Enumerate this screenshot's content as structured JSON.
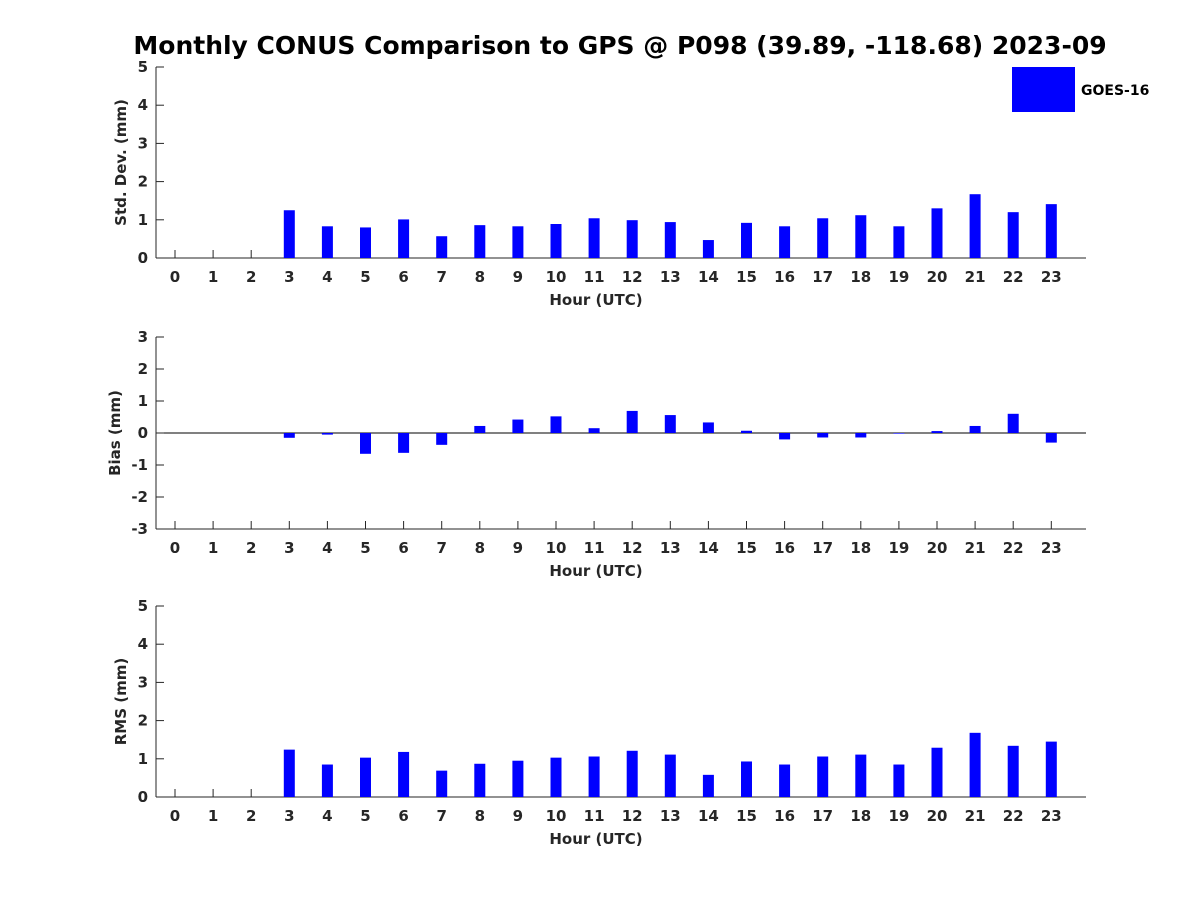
{
  "chart_data": {
    "title": "Monthly CONUS Comparison to GPS @ P098 (39.89, -118.68) 2023-09",
    "legend": {
      "label": "GOES-16",
      "color": "#0000ff",
      "placement": "top-right"
    },
    "type": "bar",
    "panels": [
      {
        "name": "std-dev",
        "xlabel": "Hour (UTC)",
        "ylabel": "Std. Dev. (mm)",
        "ylim": [
          0,
          5
        ],
        "yticks": [
          0,
          1,
          2,
          3,
          4,
          5
        ],
        "x": [
          0,
          1,
          2,
          3,
          4,
          5,
          6,
          7,
          8,
          9,
          10,
          11,
          12,
          13,
          14,
          15,
          16,
          17,
          18,
          19,
          20,
          21,
          22,
          23
        ],
        "values": [
          0,
          0,
          0,
          1.25,
          0.83,
          0.8,
          1.01,
          0.57,
          0.86,
          0.83,
          0.89,
          1.04,
          0.99,
          0.94,
          0.47,
          0.92,
          0.83,
          1.04,
          1.12,
          0.83,
          1.3,
          1.67,
          1.2,
          1.41
        ]
      },
      {
        "name": "bias",
        "xlabel": "Hour (UTC)",
        "ylabel": "Bias (mm)",
        "ylim": [
          -3,
          3
        ],
        "yticks": [
          -3,
          -2,
          -1,
          0,
          1,
          2,
          3
        ],
        "x": [
          0,
          1,
          2,
          3,
          4,
          5,
          6,
          7,
          8,
          9,
          10,
          11,
          12,
          13,
          14,
          15,
          16,
          17,
          18,
          19,
          20,
          21,
          22,
          23
        ],
        "values": [
          0,
          0,
          0,
          -0.15,
          -0.05,
          -0.65,
          -0.62,
          -0.37,
          0.22,
          0.42,
          0.52,
          0.15,
          0.69,
          0.56,
          0.33,
          0.07,
          -0.2,
          -0.14,
          -0.14,
          -0.02,
          0.06,
          0.22,
          0.6,
          -0.3
        ]
      },
      {
        "name": "rms",
        "xlabel": "Hour (UTC)",
        "ylabel": "RMS (mm)",
        "ylim": [
          0,
          5
        ],
        "yticks": [
          0,
          1,
          2,
          3,
          4,
          5
        ],
        "x": [
          0,
          1,
          2,
          3,
          4,
          5,
          6,
          7,
          8,
          9,
          10,
          11,
          12,
          13,
          14,
          15,
          16,
          17,
          18,
          19,
          20,
          21,
          22,
          23
        ],
        "values": [
          0,
          0,
          0,
          1.24,
          0.85,
          1.03,
          1.18,
          0.69,
          0.87,
          0.95,
          1.03,
          1.06,
          1.21,
          1.11,
          0.58,
          0.93,
          0.85,
          1.06,
          1.11,
          0.85,
          1.29,
          1.68,
          1.34,
          1.45
        ]
      }
    ]
  }
}
